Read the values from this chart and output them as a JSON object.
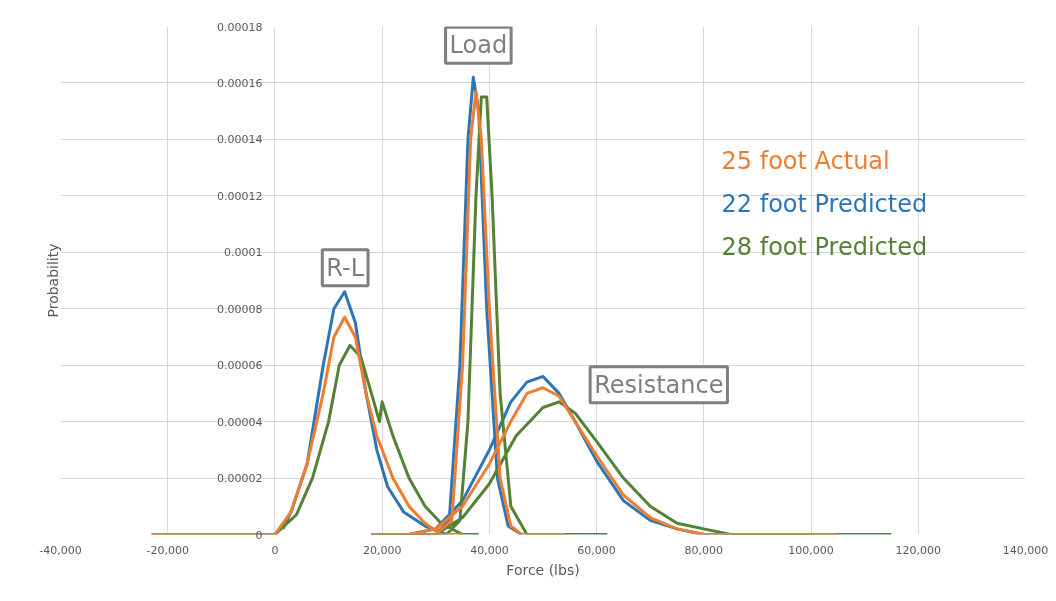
{
  "chart_data": {
    "type": "line",
    "xlabel": "Force (lbs)",
    "ylabel": "Probability",
    "xlim": [
      -40000,
      140000
    ],
    "ylim": [
      0,
      0.00018
    ],
    "xticks": [
      {
        "value": -40000,
        "label": "-40,000"
      },
      {
        "value": -20000,
        "label": "-20,000"
      },
      {
        "value": 0,
        "label": "0"
      },
      {
        "value": 20000,
        "label": "20,000"
      },
      {
        "value": 40000,
        "label": "40,000"
      },
      {
        "value": 60000,
        "label": "60,000"
      },
      {
        "value": 80000,
        "label": "80,000"
      },
      {
        "value": 100000,
        "label": "100,000"
      },
      {
        "value": 120000,
        "label": "120,000"
      },
      {
        "value": 140000,
        "label": "140,000"
      }
    ],
    "yticks": [
      {
        "value": 0,
        "label": "0"
      },
      {
        "value": 2e-05,
        "label": "0.00002"
      },
      {
        "value": 4e-05,
        "label": "0.00004"
      },
      {
        "value": 6e-05,
        "label": "0.00006"
      },
      {
        "value": 8e-05,
        "label": "0.00008"
      },
      {
        "value": 0.0001,
        "label": "0.0001"
      },
      {
        "value": 0.00012,
        "label": "0.00012"
      },
      {
        "value": 0.00014,
        "label": "0.00014"
      },
      {
        "value": 0.00016,
        "label": "0.00016"
      },
      {
        "value": 0.00018,
        "label": "0.00018"
      }
    ],
    "grid": true,
    "line_style": "solid",
    "series": [
      {
        "name": "22 foot Predicted",
        "color": "#2e75b6",
        "x": [
          1500,
          3000,
          6000,
          9000,
          11000,
          13000,
          15000,
          17000,
          19000,
          21000,
          24000,
          28000,
          32000,
          null,
          18000,
          30000,
          32500,
          34500,
          36000,
          37000,
          38000,
          39500,
          41500,
          43500,
          46000,
          null,
          25000,
          30000,
          35000,
          40000,
          44000,
          47000,
          50000,
          53000,
          56000,
          60000,
          65000,
          70000,
          75000,
          80000,
          100000
        ],
        "values": [
          2e-06,
          8e-06,
          2.5e-05,
          6e-05,
          8e-05,
          8.6e-05,
          7.5e-05,
          5e-05,
          3e-05,
          1.7e-05,
          8e-06,
          3e-06,
          0,
          null,
          0,
          0,
          5e-06,
          6e-05,
          0.00014,
          0.000162,
          0.00015,
          8e-05,
          2e-05,
          3e-06,
          0,
          null,
          0,
          2e-06,
          1.2e-05,
          3e-05,
          4.7e-05,
          5.4e-05,
          5.6e-05,
          5e-05,
          4e-05,
          2.6e-05,
          1.2e-05,
          5e-06,
          2e-06,
          0,
          0
        ]
      },
      {
        "name": "28 foot Predicted",
        "color": "#548235",
        "x": [
          -23000,
          -5000,
          0,
          4000,
          7000,
          10000,
          12000,
          14000,
          16000,
          18000,
          19500,
          20000,
          22000,
          25000,
          28000,
          31000,
          35000,
          38000,
          null,
          18000,
          32000,
          34500,
          36000,
          37500,
          38500,
          39500,
          40500,
          42000,
          44000,
          47000,
          62000,
          null,
          25000,
          30000,
          35000,
          40000,
          45000,
          50000,
          53000,
          56000,
          60000,
          65000,
          70000,
          75000,
          80000,
          85000,
          115000
        ],
        "values": [
          0,
          0,
          0,
          7e-06,
          2e-05,
          4e-05,
          6e-05,
          6.7e-05,
          6.3e-05,
          5e-05,
          4e-05,
          4.7e-05,
          3.5e-05,
          2e-05,
          1e-05,
          4e-06,
          0,
          0,
          null,
          0,
          0,
          5e-06,
          4e-05,
          0.00012,
          0.000155,
          0.000155,
          0.00012,
          5e-05,
          1e-05,
          0,
          0,
          null,
          0,
          0,
          6e-06,
          1.8e-05,
          3.5e-05,
          4.5e-05,
          4.7e-05,
          4.3e-05,
          3.3e-05,
          2e-05,
          1e-05,
          4e-06,
          2e-06,
          0,
          0
        ]
      },
      {
        "name": "25 foot Actual",
        "color": "#ed7d31",
        "x": [
          -23000,
          -5000,
          0,
          3000,
          6000,
          9000,
          11000,
          13000,
          15000,
          17000,
          19000,
          20000,
          22000,
          25000,
          28000,
          31000,
          35000,
          null,
          18000,
          30000,
          33000,
          35000,
          36500,
          37500,
          38500,
          40000,
          42000,
          44000,
          46000,
          54000,
          null,
          25000,
          30000,
          35000,
          40000,
          44000,
          47000,
          50000,
          53000,
          56000,
          60000,
          65000,
          70000,
          75000,
          80000,
          85000,
          105000
        ],
        "values": [
          0,
          0,
          0,
          8e-06,
          2.5e-05,
          5e-05,
          7e-05,
          7.7e-05,
          7e-05,
          5e-05,
          3.5e-05,
          3e-05,
          2e-05,
          1e-05,
          4e-06,
          0,
          0,
          null,
          0,
          0,
          5e-06,
          6e-05,
          0.00014,
          0.000157,
          0.00014,
          8e-05,
          2e-05,
          3e-06,
          0,
          0,
          null,
          0,
          2e-06,
          1e-05,
          2.5e-05,
          4e-05,
          5e-05,
          5.2e-05,
          4.9e-05,
          4e-05,
          2.8e-05,
          1.4e-05,
          6e-06,
          2e-06,
          0,
          0,
          0
        ]
      }
    ],
    "annotations": [
      "R-L",
      "Load",
      "Resistance"
    ]
  }
}
